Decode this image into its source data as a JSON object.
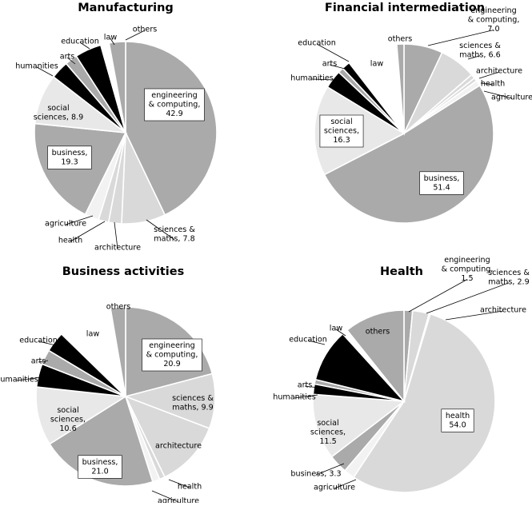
{
  "colors": {
    "engineering": "#aaaaaa",
    "sciences": "#d9d9d9",
    "architecture": "#d9d9d9",
    "health": "#d9d9d9",
    "agriculture": "#f2f2f2",
    "business": "#aaaaaa",
    "social": "#e8e8e8",
    "humanities": "#000000",
    "arts": "#aaaaaa",
    "education": "#000000",
    "law": "#ffffff",
    "others": "#aaaaaa",
    "stroke": "#ffffff"
  },
  "chart_data": [
    {
      "type": "pie",
      "title": "Manufacturing",
      "slices": [
        {
          "key": "engineering",
          "value": 42.9,
          "label": [
            "engineering",
            "& computing,",
            "42.9"
          ]
        },
        {
          "key": "sciences",
          "value": 7.8,
          "label": [
            "sciences &",
            "maths, 7.8"
          ]
        },
        {
          "key": "architecture",
          "value": 2.3,
          "label": [
            "architecture"
          ]
        },
        {
          "key": "health",
          "value": 1.8,
          "label": [
            "health"
          ]
        },
        {
          "key": "agriculture",
          "value": 2.5,
          "label": [
            "agriculture"
          ]
        },
        {
          "key": "business",
          "value": 19.3,
          "label": [
            "business,",
            "19.3"
          ]
        },
        {
          "key": "social",
          "value": 8.9,
          "label": [
            "social",
            "sciences, 8.9"
          ]
        },
        {
          "key": "humanities",
          "value": 3.2,
          "label": [
            "humanities"
          ]
        },
        {
          "key": "arts",
          "value": 2.2,
          "label": [
            "arts"
          ]
        },
        {
          "key": "education",
          "value": 4.7,
          "label": [
            "education"
          ]
        },
        {
          "key": "law",
          "value": 1.5,
          "label": [
            "law"
          ]
        },
        {
          "key": "others",
          "value": 2.9,
          "label": [
            "others"
          ]
        }
      ]
    },
    {
      "type": "pie",
      "title": "Financial intermediation",
      "slices": [
        {
          "key": "engineering",
          "value": 7.0,
          "label": [
            "engineering",
            "& computing,",
            "7.0"
          ]
        },
        {
          "key": "sciences",
          "value": 6.6,
          "label": [
            "sciences &",
            "maths, 6.6"
          ]
        },
        {
          "key": "architecture",
          "value": 0.8,
          "label": [
            "architecture"
          ]
        },
        {
          "key": "health",
          "value": 0.6,
          "label": [
            "health"
          ]
        },
        {
          "key": "agriculture",
          "value": 1.0,
          "label": [
            "agriculture"
          ]
        },
        {
          "key": "business",
          "value": 51.4,
          "label": [
            "business,",
            "51.4"
          ]
        },
        {
          "key": "social",
          "value": 16.3,
          "label": [
            "social",
            "sciences,",
            "16.3"
          ]
        },
        {
          "key": "humanities",
          "value": 3.3,
          "label": [
            "humanities"
          ]
        },
        {
          "key": "arts",
          "value": 1.0,
          "label": [
            "arts"
          ]
        },
        {
          "key": "education",
          "value": 1.5,
          "label": [
            "education"
          ]
        },
        {
          "key": "law",
          "value": 9.2,
          "label": [
            "law"
          ]
        },
        {
          "key": "others",
          "value": 1.3,
          "label": [
            "others"
          ]
        }
      ]
    },
    {
      "type": "pie",
      "title": "Business activities",
      "slices": [
        {
          "key": "engineering",
          "value": 20.9,
          "label": [
            "engineering",
            "& computing,",
            "20.9"
          ]
        },
        {
          "key": "sciences",
          "value": 9.9,
          "label": [
            "sciences &",
            "maths, 9.9"
          ]
        },
        {
          "key": "architecture",
          "value": 12.0,
          "label": [
            "architecture"
          ]
        },
        {
          "key": "health",
          "value": 1.0,
          "label": [
            "health"
          ]
        },
        {
          "key": "agriculture",
          "value": 1.3,
          "label": [
            "agriculture"
          ]
        },
        {
          "key": "business",
          "value": 21.0,
          "label": [
            "business,",
            "21.0"
          ]
        },
        {
          "key": "social",
          "value": 10.6,
          "label": [
            "social",
            "sciences,",
            "10.6"
          ]
        },
        {
          "key": "humanities",
          "value": 4.2,
          "label": [
            "humanities"
          ]
        },
        {
          "key": "arts",
          "value": 2.7,
          "label": [
            "arts"
          ]
        },
        {
          "key": "education",
          "value": 3.7,
          "label": [
            "education"
          ]
        },
        {
          "key": "law",
          "value": 10.0,
          "label": [
            "law"
          ]
        },
        {
          "key": "others",
          "value": 2.7,
          "label": [
            "others"
          ]
        }
      ]
    },
    {
      "type": "pie",
      "title": "Health",
      "slices": [
        {
          "key": "engineering",
          "value": 1.5,
          "label": [
            "engineering",
            "& computing,",
            "1.5"
          ]
        },
        {
          "key": "sciences",
          "value": 2.9,
          "label": [
            "sciences &",
            "maths, 2.9"
          ]
        },
        {
          "key": "architecture",
          "value": 0.2,
          "label": [
            "architecture"
          ]
        },
        {
          "key": "health",
          "value": 54.0,
          "label": [
            "health",
            "54.0"
          ]
        },
        {
          "key": "agriculture",
          "value": 1.9,
          "label": [
            "agriculture"
          ]
        },
        {
          "key": "business",
          "value": 3.3,
          "label": [
            "business, 3.3"
          ]
        },
        {
          "key": "social",
          "value": 11.5,
          "label": [
            "social",
            "sciences,",
            "11.5"
          ]
        },
        {
          "key": "humanities",
          "value": 1.8,
          "label": [
            "humanities"
          ]
        },
        {
          "key": "arts",
          "value": 0.8,
          "label": [
            "arts"
          ]
        },
        {
          "key": "education",
          "value": 9.3,
          "label": [
            "education"
          ]
        },
        {
          "key": "law",
          "value": 1.0,
          "label": [
            "law"
          ]
        },
        {
          "key": "others",
          "value": 10.6,
          "label": [
            "others"
          ]
        }
      ]
    }
  ]
}
